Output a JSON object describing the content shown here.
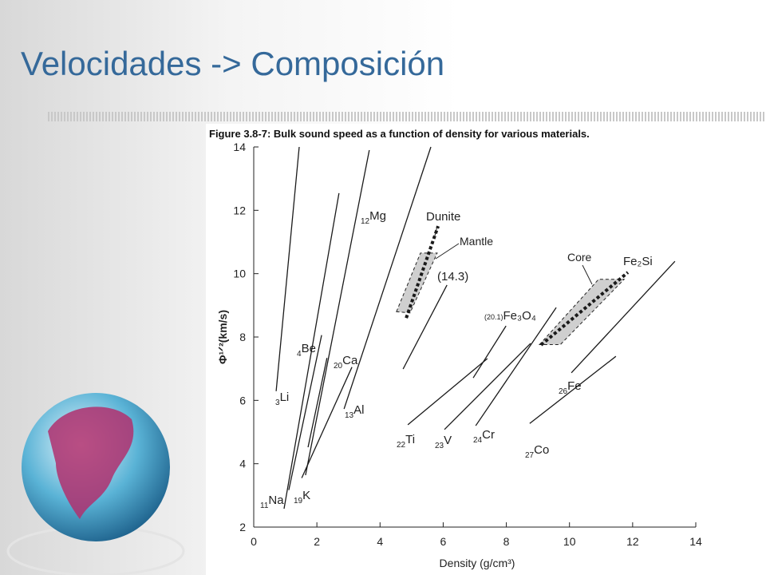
{
  "slide_title": "Velocidades -> Composición",
  "chart_data": {
    "type": "line",
    "caption": "Figure 3.8-7: Bulk sound speed as a function of density for various materials.",
    "x_label": "Density (g/cm³)",
    "y_label": "Φ¹ᐟ²(km/s)",
    "xlim": [
      0,
      14
    ],
    "ylim": [
      2,
      14
    ],
    "xticks": [
      0,
      2,
      4,
      6,
      8,
      10,
      12,
      14
    ],
    "yticks": [
      2,
      4,
      6,
      8,
      10,
      12,
      14
    ],
    "color": "#1a1a1a",
    "series": [
      {
        "name": "Li",
        "z": 3,
        "x": [
          0.71,
          1.44
        ],
        "values": [
          6.29,
          14
        ]
      },
      {
        "name": "Be",
        "z": 4,
        "x": [
          1.11,
          2.15
        ],
        "values": [
          3.17,
          8.06
        ]
      },
      {
        "name": "Na",
        "z": 11,
        "x": [
          0.96,
          2.7
        ],
        "values": [
          2.58,
          12.54
        ]
      },
      {
        "name": "K",
        "z": 19,
        "x": [
          1.52,
          3.11
        ],
        "values": [
          3.55,
          7.05
        ]
      },
      {
        "name": "Ca",
        "z": 20,
        "x": [
          1.72,
          2.32
        ],
        "values": [
          4.52,
          7.34
        ]
      },
      {
        "name": "Mg",
        "z": 12,
        "x": [
          1.64,
          3.66
        ],
        "values": [
          3.64,
          13.9
        ]
      },
      {
        "name": "Al",
        "z": 13,
        "x": [
          2.86,
          5.61
        ],
        "values": [
          5.73,
          14
        ]
      },
      {
        "name": "(14.3)",
        "x": [
          4.73,
          6.12
        ],
        "values": [
          6.99,
          9.64
        ]
      },
      {
        "name": "Fe₃O₄",
        "prefix": "(20.1)",
        "x": [
          6.95,
          7.99
        ],
        "values": [
          6.71,
          8.35
        ]
      },
      {
        "name": "Ti",
        "z": 22,
        "x": [
          4.88,
          7.4
        ],
        "values": [
          5.23,
          7.32
        ]
      },
      {
        "name": "V",
        "z": 23,
        "x": [
          6.04,
          8.77
        ],
        "values": [
          5.08,
          7.8
        ]
      },
      {
        "name": "Cr",
        "z": 24,
        "x": [
          7.03,
          9.58
        ],
        "values": [
          5.2,
          8.93
        ]
      },
      {
        "name": "Fe",
        "z": 26,
        "x": [
          10.06,
          13.34
        ],
        "values": [
          6.87,
          10.39
        ]
      },
      {
        "name": "Co",
        "z": 27,
        "x": [
          8.74,
          11.47
        ],
        "values": [
          5.27,
          7.39
        ]
      },
      {
        "name": "Dunite",
        "style": "dotted",
        "x": [
          4.83,
          5.84
        ],
        "values": [
          8.6,
          11.5
        ]
      },
      {
        "name": "Fe₂Si",
        "style": "dotted",
        "x": [
          9.1,
          11.85
        ],
        "values": [
          7.75,
          10.04
        ]
      }
    ],
    "regions": [
      {
        "name": "Mantle",
        "color": "#cfcfcf",
        "points": [
          [
            4.52,
            8.8
          ],
          [
            5.28,
            10.65
          ],
          [
            5.81,
            10.65
          ],
          [
            4.95,
            8.76
          ]
        ]
      },
      {
        "name": "Core",
        "color": "#cfcfcf",
        "points": [
          [
            9.05,
            7.76
          ],
          [
            10.92,
            9.82
          ],
          [
            11.73,
            9.82
          ],
          [
            9.71,
            7.76
          ]
        ]
      }
    ]
  }
}
